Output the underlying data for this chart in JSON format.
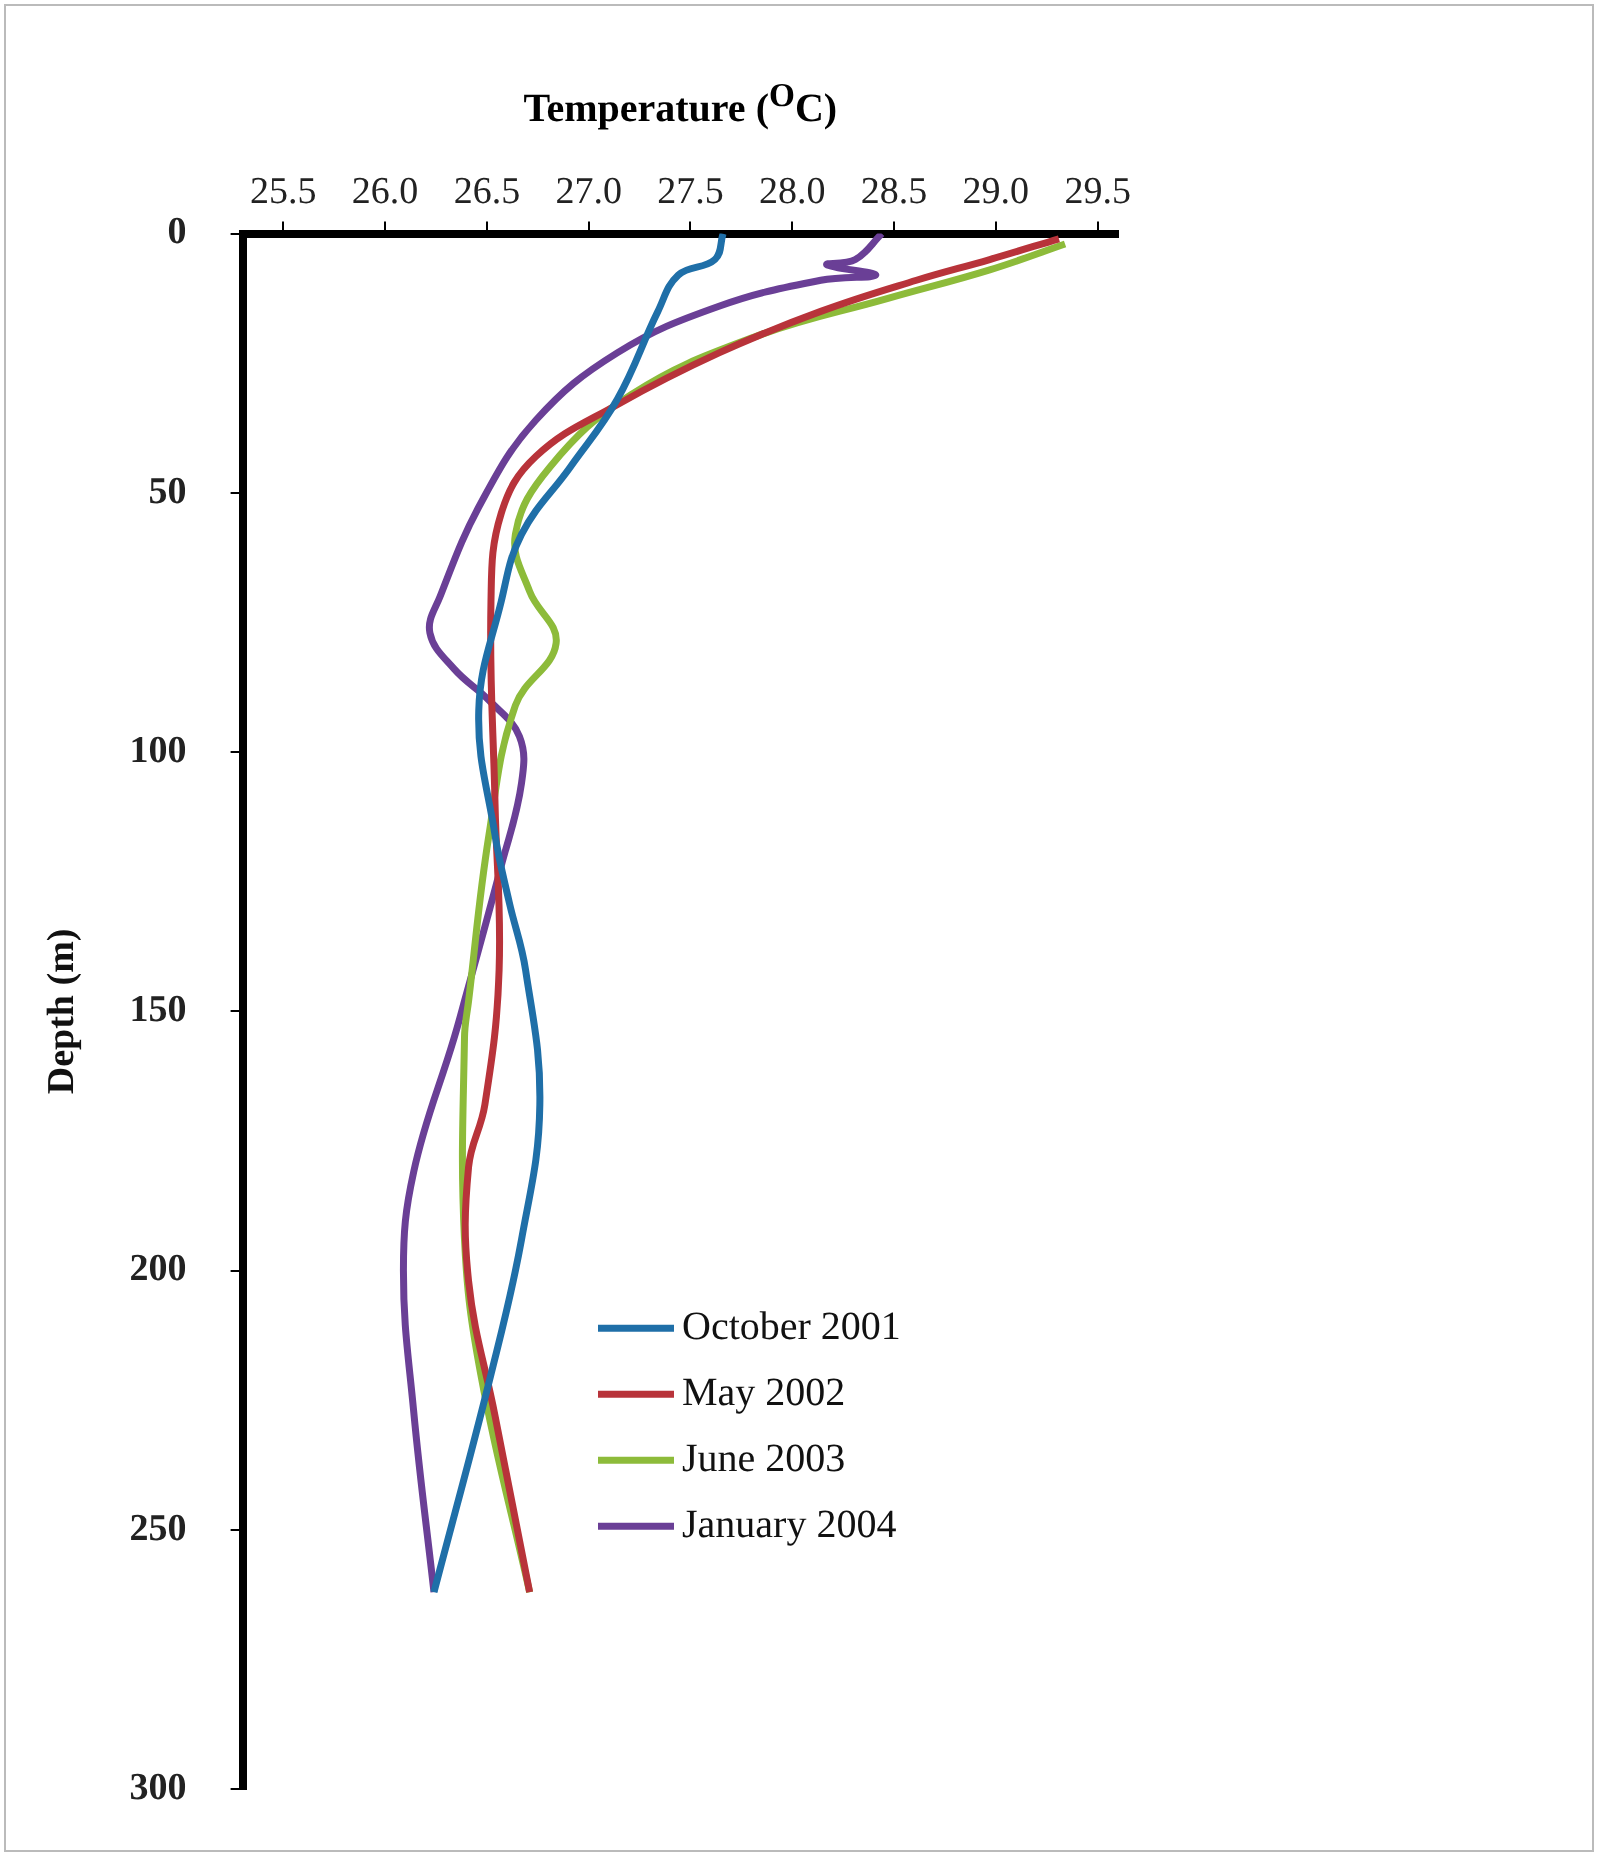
{
  "chart_data": {
    "type": "line",
    "xlabel": "Temperature ($^{O}$C)",
    "ylabel": "Depth (m)",
    "xlim": [
      25.3,
      29.6
    ],
    "xticks": [
      {
        "value": 25.5,
        "label": "25.5"
      },
      {
        "value": 26,
        "label": "26.0"
      },
      {
        "value": 26.5,
        "label": "26.5"
      },
      {
        "value": 27,
        "label": "27.0"
      },
      {
        "value": 27.5,
        "label": "27.5"
      },
      {
        "value": 28,
        "label": "28.0"
      },
      {
        "value": 28.5,
        "label": "28.5"
      },
      {
        "value": 29,
        "label": "29.0"
      },
      {
        "value": 29.5,
        "label": "29.5"
      }
    ],
    "ylim": [
      300,
      0
    ],
    "yticks": [
      0,
      50,
      100,
      150,
      200,
      250,
      300
    ],
    "grid": false,
    "legend": "bottom right",
    "marker": "none",
    "line_style": "solid",
    "series": [
      {
        "name": "October 2001",
        "color": "#1f6fa8",
        "x": [
          27.66,
          27.62,
          27.44,
          27.34,
          27.14,
          26.91,
          26.67,
          26.57,
          26.46,
          26.54,
          26.61,
          26.69,
          26.76,
          26.67,
          26.52,
          26.24
        ],
        "values": [
          0,
          5,
          8,
          15,
          32,
          45,
          58,
          71,
          92,
          116,
          129,
          142,
          168,
          194,
          220,
          262
        ]
      },
      {
        "name": "May 2002",
        "color": "#b8333a",
        "x": [
          29.31,
          28.97,
          28.61,
          28.14,
          27.64,
          27.14,
          26.74,
          26.57,
          26.52,
          26.54,
          26.56,
          26.49,
          26.41,
          26.41,
          26.54,
          26.71
        ],
        "values": [
          1,
          5,
          9,
          15,
          23,
          33,
          43,
          54,
          71,
          110,
          142,
          168,
          180,
          202,
          228,
          262
        ]
      },
      {
        "name": "June 2003",
        "color": "#8dbb3a",
        "x": [
          29.34,
          28.97,
          28.47,
          27.81,
          27.21,
          26.81,
          26.64,
          26.71,
          26.84,
          26.64,
          26.51,
          26.41,
          26.39,
          26.39,
          26.47,
          26.71
        ],
        "values": [
          2,
          7,
          12.5,
          20,
          31,
          45,
          58,
          69,
          79,
          91,
          116,
          148,
          155,
          194,
          220,
          262
        ]
      },
      {
        "name": "January 2004",
        "color": "#6a3f96",
        "x": [
          28.44,
          28.31,
          28.17,
          28.41,
          28.14,
          27.64,
          27.14,
          26.74,
          26.47,
          26.27,
          26.22,
          26.34,
          26.51,
          26.66,
          26.67,
          26.57,
          26.39,
          26.34,
          26.14,
          26.09,
          26.14,
          26.24
        ],
        "values": [
          0,
          5,
          6,
          8,
          9,
          14,
          23,
          36,
          52,
          70,
          77,
          84,
          90,
          97,
          106,
          122,
          148,
          155,
          181,
          200,
          227,
          262
        ]
      }
    ]
  }
}
